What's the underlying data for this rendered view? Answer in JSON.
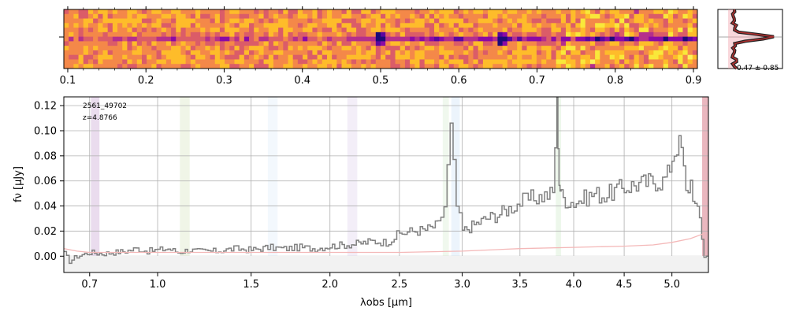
{
  "chart_data": [
    {
      "panel": "2d-spectrum",
      "type": "heatmap",
      "colormap": "plasma (purple-orange-yellow)",
      "x_tick_labels": [
        "0.1",
        "0.2",
        "0.3",
        "0.4",
        "0.5",
        "0.6",
        "0.7",
        "0.8",
        "0.9"
      ],
      "x_ticks": [
        0.1,
        0.2,
        0.3,
        0.4,
        0.5,
        0.6,
        0.7,
        0.8,
        0.9
      ],
      "xlim": [
        0.095,
        0.905
      ],
      "trace_center_row": 0.47,
      "emission_features_x": [
        0.5,
        0.655
      ]
    },
    {
      "panel": "spatial-profile",
      "type": "line",
      "annotation": "0.47 ± 0.85",
      "profile_peak_row": 0.47
    },
    {
      "panel": "1d-spectrum",
      "type": "line",
      "xlabel": "λobs [μm]",
      "ylabel": "fν [μJy]",
      "x_tick_labels": [
        "0.7",
        "1.0",
        "1.5",
        "2.0",
        "2.5",
        "3.0",
        "3.5",
        "4.0",
        "4.5",
        "5.0"
      ],
      "x_ticks": [
        0.7,
        1.0,
        1.5,
        2.0,
        2.5,
        3.0,
        3.5,
        4.0,
        4.5,
        5.0
      ],
      "x_scale": "sqrt",
      "xlim": [
        0.6,
        5.4
      ],
      "y_tick_labels": [
        "0.00",
        "0.02",
        "0.04",
        "0.06",
        "0.08",
        "0.10",
        "0.12"
      ],
      "yticks": [
        0.0,
        0.02,
        0.04,
        0.06,
        0.08,
        0.1,
        0.12
      ],
      "ylim": [
        -0.013,
        0.127
      ],
      "grid": true,
      "annotation_lines": [
        "2561_49702",
        "z=4.8766"
      ],
      "colors": {
        "flux": "#808080",
        "error": "#f4b8b8"
      },
      "series": [
        {
          "role": "flux",
          "style": "step",
          "x": [
            0.6,
            0.62,
            0.65,
            0.7,
            0.75,
            0.8,
            0.85,
            0.9,
            0.95,
            1.0,
            1.05,
            1.1,
            1.15,
            1.2,
            1.3,
            1.4,
            1.5,
            1.6,
            1.7,
            1.8,
            1.9,
            2.0,
            2.1,
            2.2,
            2.3,
            2.4,
            2.5,
            2.6,
            2.7,
            2.8,
            2.85,
            2.9,
            2.95,
            3.0,
            3.1,
            3.2,
            3.3,
            3.4,
            3.5,
            3.6,
            3.7,
            3.8,
            3.84,
            3.86,
            3.88,
            3.92,
            4.0,
            4.1,
            4.2,
            4.3,
            4.4,
            4.5,
            4.6,
            4.7,
            4.8,
            4.9,
            4.95,
            5.0,
            5.05,
            5.1,
            5.15,
            5.2,
            5.25,
            5.3,
            5.35,
            5.4
          ],
          "y": [
            0.002,
            -0.004,
            0.0,
            0.003,
            0.002,
            0.003,
            0.004,
            0.006,
            0.004,
            0.005,
            0.006,
            0.003,
            0.005,
            0.004,
            0.004,
            0.006,
            0.005,
            0.007,
            0.006,
            0.007,
            0.006,
            0.008,
            0.009,
            0.01,
            0.012,
            0.011,
            0.018,
            0.02,
            0.021,
            0.025,
            0.04,
            0.1,
            0.04,
            0.02,
            0.025,
            0.03,
            0.033,
            0.038,
            0.043,
            0.046,
            0.048,
            0.05,
            0.13,
            0.06,
            0.048,
            0.045,
            0.043,
            0.046,
            0.05,
            0.048,
            0.052,
            0.055,
            0.057,
            0.058,
            0.06,
            0.06,
            0.065,
            0.08,
            0.09,
            0.085,
            0.05,
            0.06,
            0.04,
            0.03,
            0.0,
            0.0
          ]
        },
        {
          "role": "error",
          "style": "line",
          "x": [
            0.6,
            0.65,
            0.7,
            0.8,
            1.0,
            1.5,
            2.0,
            2.5,
            3.0,
            3.5,
            4.0,
            4.5,
            4.8,
            5.0,
            5.2,
            5.35
          ],
          "y": [
            0.006,
            0.004,
            0.003,
            0.003,
            0.003,
            0.003,
            0.003,
            0.003,
            0.004,
            0.006,
            0.007,
            0.008,
            0.009,
            0.011,
            0.014,
            0.018
          ]
        }
      ],
      "line_marker_bands": [
        {
          "x0": 0.705,
          "x1": 0.74,
          "color": "#a060b0",
          "alpha": 0.22
        },
        {
          "x0": 1.11,
          "x1": 1.16,
          "color": "#9bbd60",
          "alpha": 0.15
        },
        {
          "x0": 1.6,
          "x1": 1.66,
          "color": "#a0c8f0",
          "alpha": 0.12
        },
        {
          "x0": 2.12,
          "x1": 2.19,
          "color": "#b090d0",
          "alpha": 0.15
        },
        {
          "x0": 2.84,
          "x1": 2.89,
          "color": "#9bd090",
          "alpha": 0.15
        },
        {
          "x0": 2.91,
          "x1": 2.98,
          "color": "#a0c8f0",
          "alpha": 0.2
        },
        {
          "x0": 3.83,
          "x1": 3.88,
          "color": "#9bd090",
          "alpha": 0.18
        },
        {
          "x0": 5.33,
          "x1": 5.4,
          "color": "#d06070",
          "alpha": 0.45
        }
      ]
    }
  ]
}
